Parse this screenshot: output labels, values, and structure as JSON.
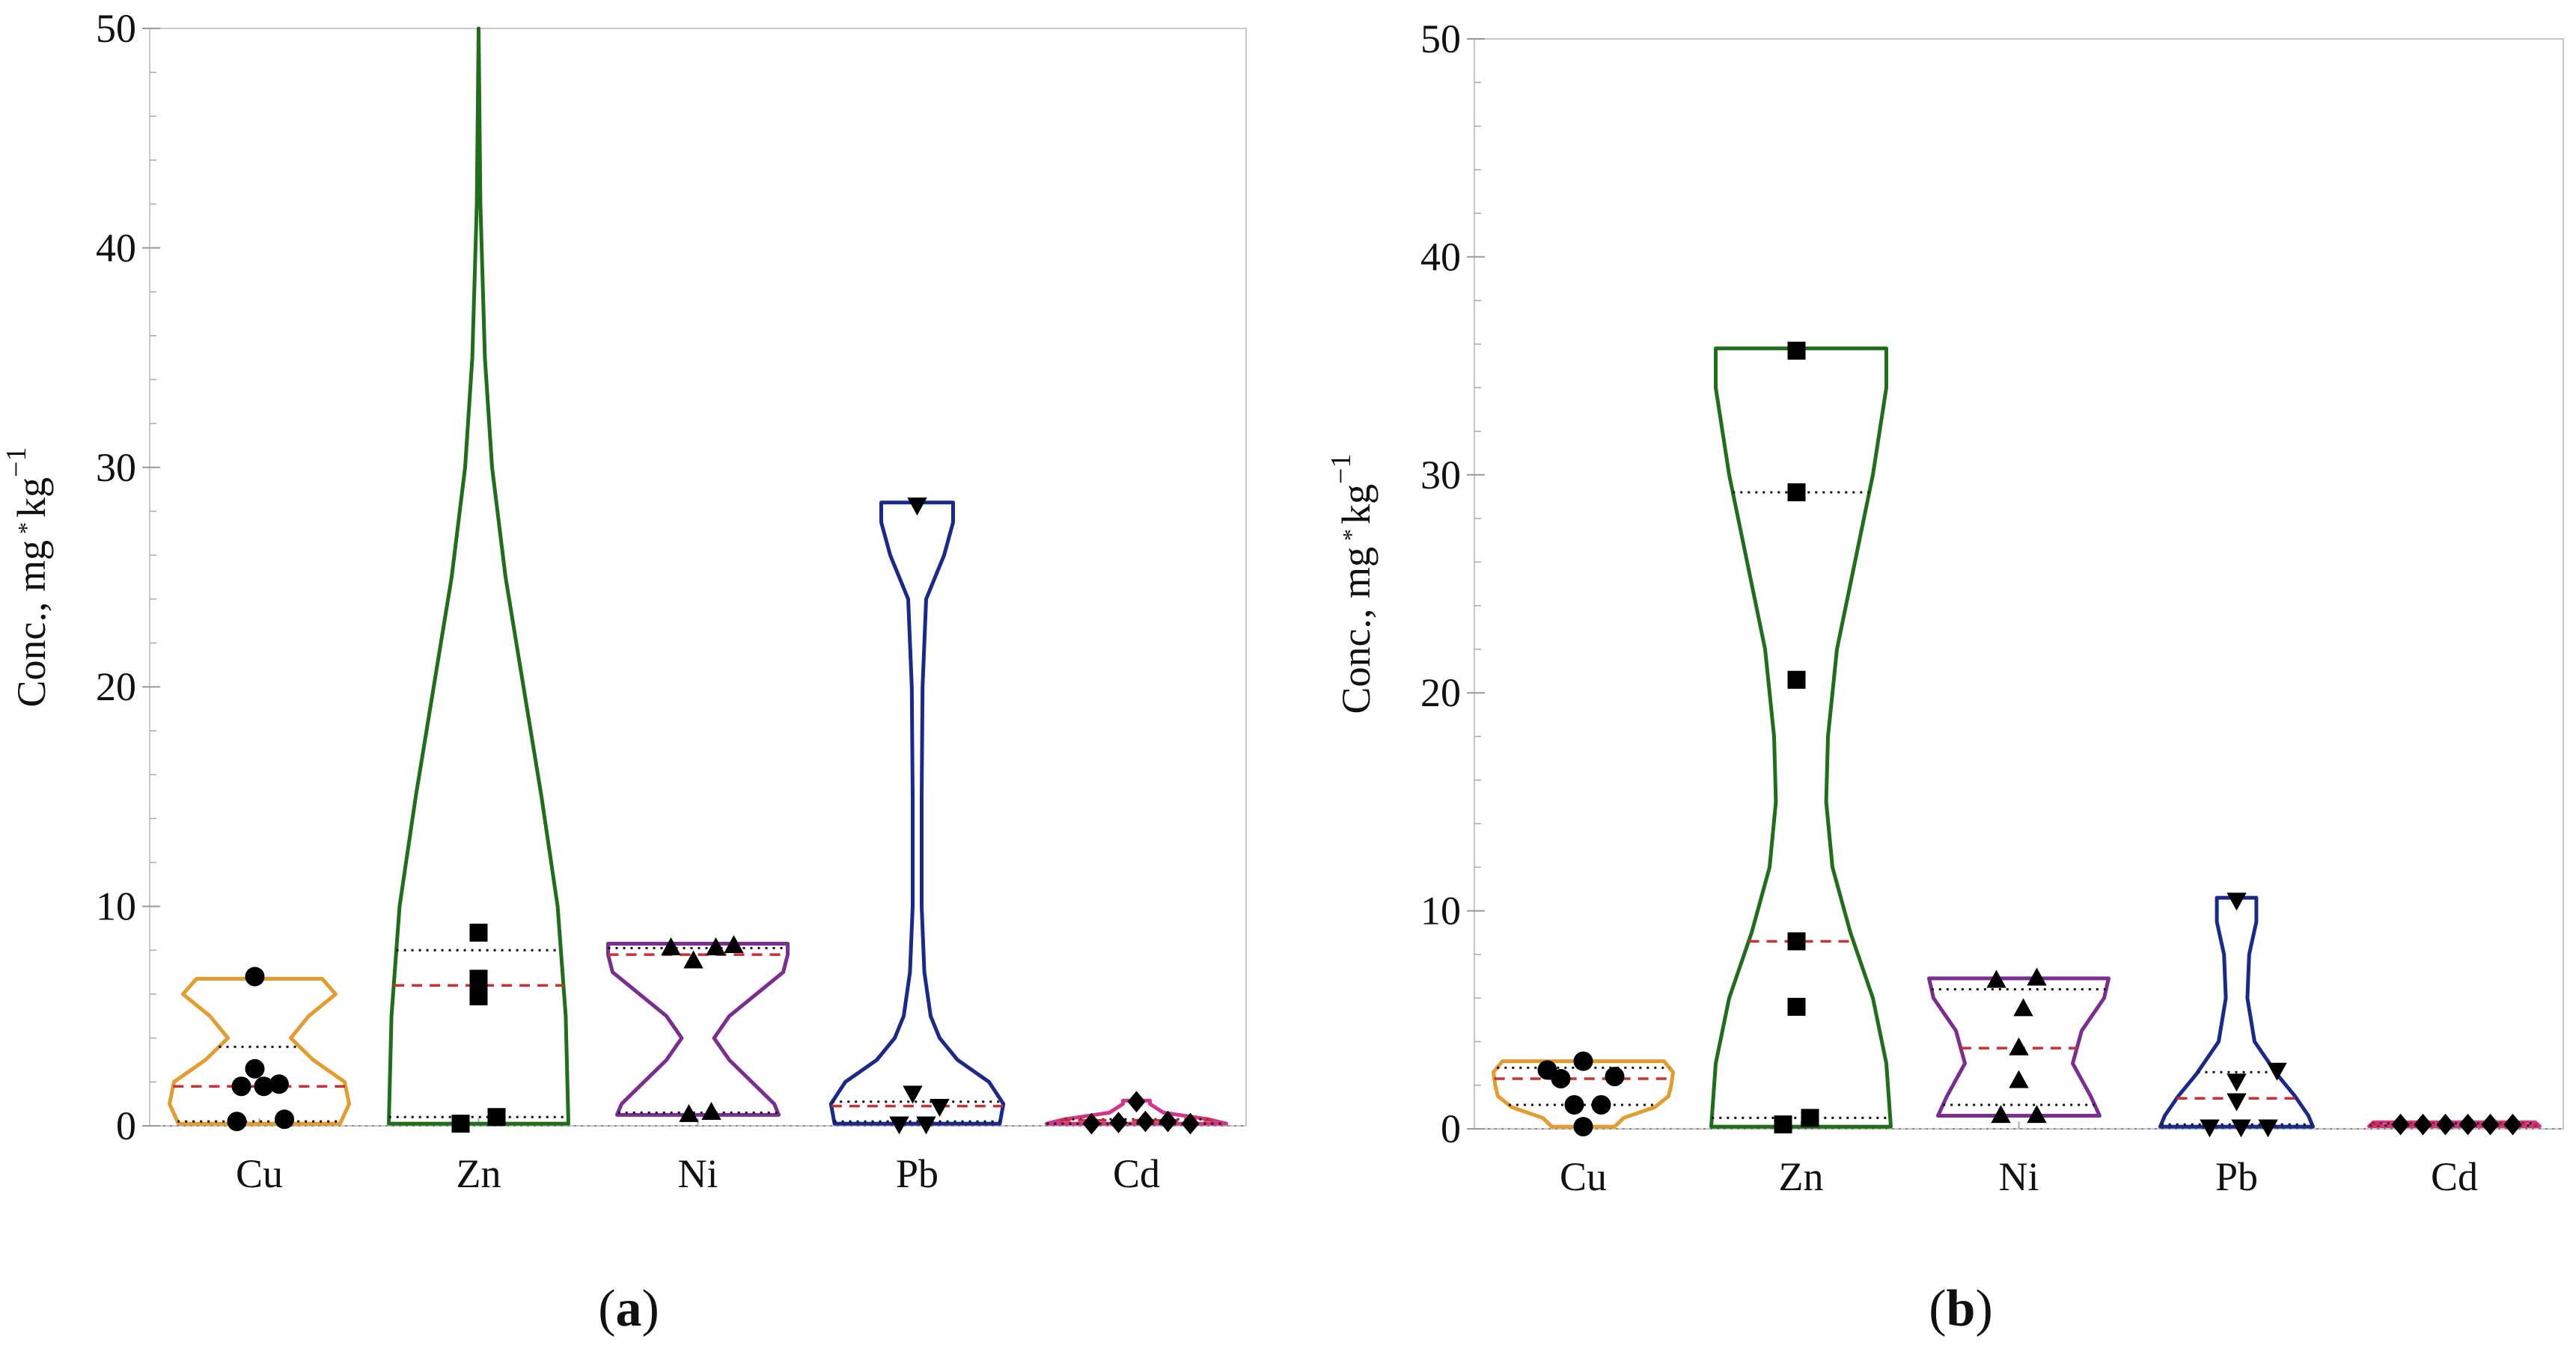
{
  "figure": {
    "panels": [
      "a",
      "b"
    ]
  },
  "chart_data": [
    {
      "type": "violin",
      "panel_label": "a",
      "ylabel": "Conc., mg",
      "ylabel_tail": "kg",
      "ylabel_exp": "−1",
      "ylim": [
        0,
        50
      ],
      "yticks": [
        "0",
        "10",
        "20",
        "30",
        "40",
        "50"
      ],
      "categories": [
        "Cu",
        "Zn",
        "Ni",
        "Pb",
        "Cd"
      ],
      "colors": [
        "#E59B2E",
        "#1F6E1A",
        "#7B2D91",
        "#1A2A8C",
        "#D6338A"
      ],
      "markers": [
        "circle",
        "square",
        "triangle-up",
        "triangle-down",
        "diamond"
      ],
      "series": [
        {
          "name": "Cu",
          "profile": [
            [
              0.1,
              0.9
            ],
            [
              1,
              1.0
            ],
            [
              2,
              0.95
            ],
            [
              3,
              0.6
            ],
            [
              4,
              0.35
            ],
            [
              5,
              0.55
            ],
            [
              6,
              0.85
            ],
            [
              6.7,
              0.7
            ]
          ],
          "median": 1.8,
          "quartiles": [
            0.2,
            3.6
          ],
          "points": [
            [
              0.2,
              -0.25
            ],
            [
              0.3,
              0.28
            ],
            [
              1.8,
              -0.2
            ],
            [
              1.8,
              0.05
            ],
            [
              2.6,
              -0.05
            ],
            [
              1.9,
              0.22
            ],
            [
              6.8,
              -0.05
            ]
          ]
        },
        {
          "name": "Zn",
          "profile": [
            [
              0.1,
              1.0
            ],
            [
              5,
              0.97
            ],
            [
              10,
              0.88
            ],
            [
              15,
              0.7
            ],
            [
              20,
              0.5
            ],
            [
              25,
              0.3
            ],
            [
              30,
              0.15
            ],
            [
              35,
              0.07
            ],
            [
              42,
              0.02
            ],
            [
              50,
              0.0
            ]
          ],
          "median": 6.4,
          "quartiles": [
            0.4,
            8.0
          ],
          "points": [
            [
              0.1,
              -0.2
            ],
            [
              0.4,
              0.2
            ],
            [
              5.9,
              0.0
            ],
            [
              6.7,
              0.0
            ],
            [
              8.8,
              0.0
            ]
          ]
        },
        {
          "name": "Ni",
          "profile": [
            [
              0.5,
              0.9
            ],
            [
              1,
              0.85
            ],
            [
              2,
              0.6
            ],
            [
              3,
              0.35
            ],
            [
              4,
              0.18
            ],
            [
              5,
              0.35
            ],
            [
              6,
              0.65
            ],
            [
              7,
              0.95
            ],
            [
              7.8,
              1.0
            ],
            [
              8.3,
              1.0
            ]
          ],
          "median": 7.8,
          "quartiles": [
            0.6,
            8.1
          ],
          "points": [
            [
              0.5,
              -0.1
            ],
            [
              0.6,
              0.15
            ],
            [
              7.5,
              -0.05
            ],
            [
              8.1,
              -0.3
            ],
            [
              8.1,
              0.2
            ],
            [
              8.2,
              0.4
            ]
          ]
        },
        {
          "name": "Pb",
          "profile": [
            [
              0.1,
              0.92
            ],
            [
              1,
              0.96
            ],
            [
              2,
              0.8
            ],
            [
              3,
              0.45
            ],
            [
              4,
              0.25
            ],
            [
              5,
              0.15
            ],
            [
              7,
              0.08
            ],
            [
              10,
              0.05
            ],
            [
              15,
              0.05
            ],
            [
              20,
              0.06
            ],
            [
              24,
              0.1
            ],
            [
              26,
              0.3
            ],
            [
              27.5,
              0.4
            ],
            [
              28.4,
              0.4
            ]
          ],
          "median": 0.9,
          "quartiles": [
            0.2,
            1.1
          ],
          "points": [
            [
              0.1,
              -0.2
            ],
            [
              0.1,
              0.1
            ],
            [
              1.5,
              -0.05
            ],
            [
              0.9,
              0.25
            ],
            [
              28.3,
              0.0
            ]
          ]
        },
        {
          "name": "Cd",
          "profile": [
            [
              0.1,
              1.0
            ],
            [
              0.3,
              0.8
            ],
            [
              0.6,
              0.3
            ],
            [
              1.0,
              0.15
            ],
            [
              1.15,
              0.15
            ]
          ],
          "median": 0.25,
          "quartiles": [
            0.1,
            0.3
          ],
          "points": [
            [
              0.1,
              -0.5
            ],
            [
              0.15,
              -0.2
            ],
            [
              0.2,
              0.1
            ],
            [
              0.2,
              0.35
            ],
            [
              0.1,
              0.6
            ],
            [
              1.1,
              0.0
            ]
          ]
        }
      ]
    },
    {
      "type": "violin",
      "panel_label": "b",
      "ylabel": "Conc., mg",
      "ylabel_tail": "kg",
      "ylabel_exp": "−1",
      "ylim": [
        0,
        50
      ],
      "yticks": [
        "0",
        "10",
        "20",
        "30",
        "40",
        "50"
      ],
      "categories": [
        "Cu",
        "Zn",
        "Ni",
        "Pb",
        "Cd"
      ],
      "colors": [
        "#E59B2E",
        "#1F6E1A",
        "#7B2D91",
        "#1A2A8C",
        "#D6338A"
      ],
      "markers": [
        "circle",
        "square",
        "triangle-up",
        "triangle-down",
        "diamond"
      ],
      "series": [
        {
          "name": "Cu",
          "profile": [
            [
              0.1,
              0.35
            ],
            [
              0.5,
              0.45
            ],
            [
              1,
              0.8
            ],
            [
              1.5,
              0.95
            ],
            [
              2,
              0.98
            ],
            [
              2.6,
              1.0
            ],
            [
              3.1,
              0.9
            ]
          ],
          "median": 2.3,
          "quartiles": [
            1.1,
            2.8
          ],
          "points": [
            [
              0.1,
              0.0
            ],
            [
              1.1,
              -0.1
            ],
            [
              1.1,
              0.2
            ],
            [
              2.3,
              -0.25
            ],
            [
              2.4,
              0.35
            ],
            [
              2.7,
              -0.4
            ],
            [
              3.1,
              0.0
            ]
          ]
        },
        {
          "name": "Zn",
          "profile": [
            [
              0.1,
              1.0
            ],
            [
              3,
              0.95
            ],
            [
              6,
              0.8
            ],
            [
              9,
              0.55
            ],
            [
              12,
              0.35
            ],
            [
              15,
              0.28
            ],
            [
              18,
              0.3
            ],
            [
              22,
              0.4
            ],
            [
              26,
              0.6
            ],
            [
              30,
              0.8
            ],
            [
              34,
              0.95
            ],
            [
              35.8,
              0.95
            ]
          ],
          "median": 8.6,
          "quartiles": [
            0.5,
            29.2
          ],
          "points": [
            [
              0.2,
              -0.2
            ],
            [
              0.5,
              0.1
            ],
            [
              5.6,
              -0.05
            ],
            [
              8.6,
              -0.05
            ],
            [
              20.6,
              -0.05
            ],
            [
              29.2,
              -0.05
            ],
            [
              35.7,
              -0.05
            ]
          ]
        },
        {
          "name": "Ni",
          "profile": [
            [
              0.6,
              0.9
            ],
            [
              1.5,
              0.8
            ],
            [
              3,
              0.6
            ],
            [
              4.5,
              0.7
            ],
            [
              6,
              0.95
            ],
            [
              6.9,
              1.0
            ]
          ],
          "median": 3.7,
          "quartiles": [
            1.1,
            6.4
          ],
          "points": [
            [
              0.6,
              -0.2
            ],
            [
              0.6,
              0.2
            ],
            [
              2.2,
              0.0
            ],
            [
              3.7,
              0.0
            ],
            [
              5.5,
              0.05
            ],
            [
              6.8,
              -0.25
            ],
            [
              6.9,
              0.2
            ]
          ]
        },
        {
          "name": "Pb",
          "profile": [
            [
              0.1,
              0.85
            ],
            [
              0.6,
              0.8
            ],
            [
              1.5,
              0.65
            ],
            [
              2.5,
              0.45
            ],
            [
              4,
              0.2
            ],
            [
              6,
              0.12
            ],
            [
              8,
              0.14
            ],
            [
              9.5,
              0.22
            ],
            [
              10.6,
              0.22
            ]
          ],
          "median": 1.4,
          "quartiles": [
            0.2,
            2.6
          ],
          "points": [
            [
              0.1,
              -0.3
            ],
            [
              0.1,
              0.05
            ],
            [
              0.1,
              0.35
            ],
            [
              1.3,
              0.0
            ],
            [
              2.2,
              0.0
            ],
            [
              2.7,
              0.45
            ],
            [
              10.5,
              0.0
            ]
          ]
        },
        {
          "name": "Cd",
          "profile": [
            [
              0.12,
              0.95
            ],
            [
              0.3,
              0.9
            ]
          ],
          "median": 0.2,
          "quartiles": [
            0.15,
            0.25
          ],
          "points": [
            [
              0.2,
              -0.6
            ],
            [
              0.2,
              -0.35
            ],
            [
              0.2,
              -0.1
            ],
            [
              0.2,
              0.15
            ],
            [
              0.2,
              0.4
            ],
            [
              0.2,
              0.65
            ]
          ]
        }
      ]
    }
  ]
}
